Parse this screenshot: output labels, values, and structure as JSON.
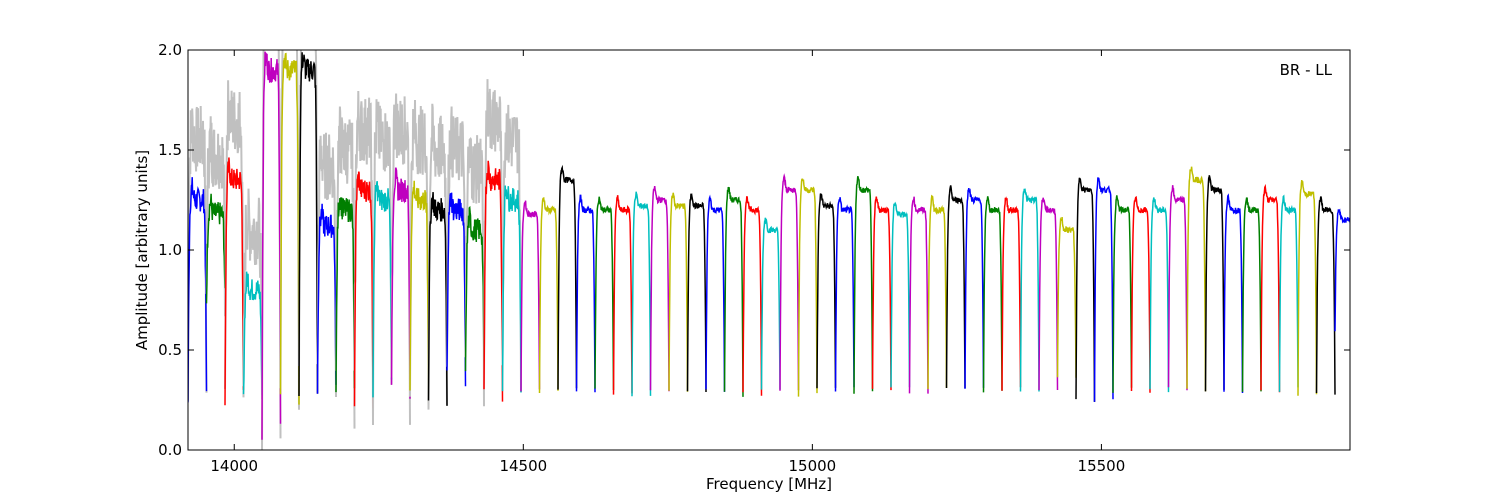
{
  "chart_data": {
    "type": "line",
    "title": "",
    "xlabel": "Frequency [MHz]",
    "ylabel": "Amplitude [arbitrary units]",
    "xlim": [
      13920,
      15930
    ],
    "ylim": [
      0.0,
      2.0
    ],
    "x_ticks": [
      14000,
      14500,
      15000,
      15500
    ],
    "y_ticks": [
      0.0,
      0.5,
      1.0,
      1.5,
      2.0
    ],
    "x_tick_labels": [
      "14000",
      "14500",
      "15000",
      "15500"
    ],
    "y_tick_labels": [
      "0.0",
      "0.5",
      "1.0",
      "1.5",
      "2.0"
    ],
    "grid": false,
    "annotation": "BR - LL",
    "background_color": "#c0c0c0",
    "channel_colors": [
      "#0000ff",
      "#007f00",
      "#ff0000",
      "#00bfbf",
      "#bf00bf",
      "#bfbf00",
      "#000000"
    ],
    "channel_width_mhz": 32,
    "channel_start_mhz": 13920,
    "channels": [
      {
        "color": "#0000ff",
        "level": 1.25,
        "min": 0.25
      },
      {
        "color": "#007f00",
        "level": 1.18,
        "min": 0.75
      },
      {
        "color": "#ff0000",
        "level": 1.35,
        "min": 0.25
      },
      {
        "color": "#00bfbf",
        "level": 0.8,
        "min": 0.23
      },
      {
        "color": "#bf00bf",
        "level": 1.9,
        "min": 0.1
      },
      {
        "color": "#bfbf00",
        "level": 1.9,
        "min": 0.28
      },
      {
        "color": "#000000",
        "level": 1.9,
        "min": 0.32
      },
      {
        "color": "#0000ff",
        "level": 1.12,
        "min": 0.31
      },
      {
        "color": "#007f00",
        "level": 1.2,
        "min": 0.28
      },
      {
        "color": "#ff0000",
        "level": 1.3,
        "min": 0.25
      },
      {
        "color": "#00bfbf",
        "level": 1.25,
        "min": 0.3
      },
      {
        "color": "#bf00bf",
        "level": 1.3,
        "min": 0.28
      },
      {
        "color": "#bfbf00",
        "level": 1.25,
        "min": 0.27
      },
      {
        "color": "#000000",
        "level": 1.2,
        "min": 0.28
      },
      {
        "color": "#0000ff",
        "level": 1.2,
        "min": 0.37
      },
      {
        "color": "#007f00",
        "level": 1.1,
        "min": 0.35
      },
      {
        "color": "#ff0000",
        "level": 1.35,
        "min": 0.28
      },
      {
        "color": "#00bfbf",
        "level": 1.25,
        "min": 0.3
      },
      {
        "color": "#bf00bf",
        "level": 1.18,
        "min": 0.3
      },
      {
        "color": "#bfbf00",
        "level": 1.2,
        "min": 0.3
      },
      {
        "color": "#000000",
        "level": 1.35,
        "min": 0.3
      },
      {
        "color": "#0000ff",
        "level": 1.2,
        "min": 0.28
      },
      {
        "color": "#007f00",
        "level": 1.2,
        "min": 0.3
      },
      {
        "color": "#ff0000",
        "level": 1.2,
        "min": 0.28
      },
      {
        "color": "#00bfbf",
        "level": 1.22,
        "min": 0.28
      },
      {
        "color": "#bf00bf",
        "level": 1.25,
        "min": 0.3
      },
      {
        "color": "#bfbf00",
        "level": 1.22,
        "min": 0.3
      },
      {
        "color": "#000000",
        "level": 1.22,
        "min": 0.3
      },
      {
        "color": "#0000ff",
        "level": 1.2,
        "min": 0.3
      },
      {
        "color": "#007f00",
        "level": 1.25,
        "min": 0.28
      },
      {
        "color": "#ff0000",
        "level": 1.2,
        "min": 0.28
      },
      {
        "color": "#00bfbf",
        "level": 1.1,
        "min": 0.3
      },
      {
        "color": "#bf00bf",
        "level": 1.3,
        "min": 0.3
      },
      {
        "color": "#bfbf00",
        "level": 1.3,
        "min": 0.28
      },
      {
        "color": "#000000",
        "level": 1.22,
        "min": 0.3
      },
      {
        "color": "#0000ff",
        "level": 1.2,
        "min": 0.3
      },
      {
        "color": "#007f00",
        "level": 1.3,
        "min": 0.28
      },
      {
        "color": "#ff0000",
        "level": 1.2,
        "min": 0.3
      },
      {
        "color": "#00bfbf",
        "level": 1.18,
        "min": 0.3
      },
      {
        "color": "#bf00bf",
        "level": 1.2,
        "min": 0.28
      },
      {
        "color": "#bfbf00",
        "level": 1.2,
        "min": 0.3
      },
      {
        "color": "#000000",
        "level": 1.25,
        "min": 0.3
      },
      {
        "color": "#0000ff",
        "level": 1.25,
        "min": 0.3
      },
      {
        "color": "#007f00",
        "level": 1.2,
        "min": 0.3
      },
      {
        "color": "#ff0000",
        "level": 1.2,
        "min": 0.3
      },
      {
        "color": "#00bfbf",
        "level": 1.25,
        "min": 0.3
      },
      {
        "color": "#bf00bf",
        "level": 1.2,
        "min": 0.3
      },
      {
        "color": "#bfbf00",
        "level": 1.1,
        "min": 0.35
      },
      {
        "color": "#000000",
        "level": 1.3,
        "min": 0.25
      },
      {
        "color": "#0000ff",
        "level": 1.3,
        "min": 0.25
      },
      {
        "color": "#007f00",
        "level": 1.2,
        "min": 0.3
      },
      {
        "color": "#ff0000",
        "level": 1.2,
        "min": 0.3
      },
      {
        "color": "#00bfbf",
        "level": 1.2,
        "min": 0.3
      },
      {
        "color": "#bf00bf",
        "level": 1.25,
        "min": 0.3
      },
      {
        "color": "#bfbf00",
        "level": 1.35,
        "min": 0.3
      },
      {
        "color": "#000000",
        "level": 1.3,
        "min": 0.3
      },
      {
        "color": "#0000ff",
        "level": 1.2,
        "min": 0.3
      },
      {
        "color": "#007f00",
        "level": 1.2,
        "min": 0.3
      },
      {
        "color": "#ff0000",
        "level": 1.25,
        "min": 0.3
      },
      {
        "color": "#00bfbf",
        "level": 1.2,
        "min": 0.3
      },
      {
        "color": "#bfbf00",
        "level": 1.28,
        "min": 0.28
      },
      {
        "color": "#000000",
        "level": 1.2,
        "min": 0.28
      },
      {
        "color": "#0000ff",
        "level": 1.15,
        "min": 0.6
      }
    ]
  }
}
